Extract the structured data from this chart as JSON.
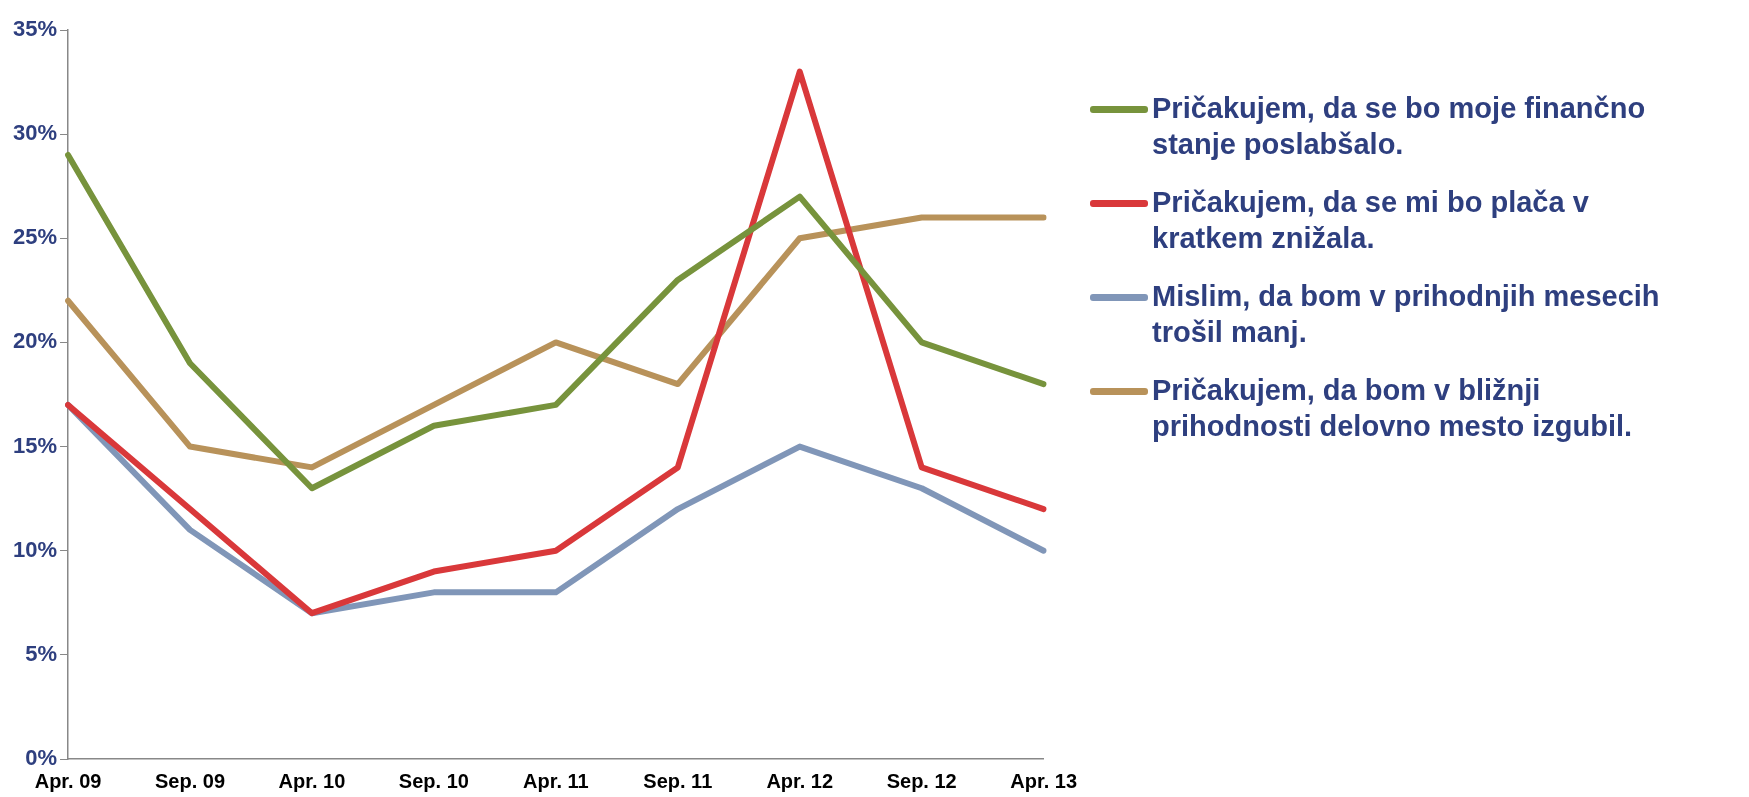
{
  "chart_data": {
    "type": "line",
    "categories": [
      "Apr. 09",
      "Sep. 09",
      "Apr. 10",
      "Sep. 10",
      "Apr. 11",
      "Sep. 11",
      "Apr. 12",
      "Sep. 12",
      "Apr. 13"
    ],
    "series": [
      {
        "name": "Pričakujem, da se bo moje finančno stanje poslabšalo.",
        "color": "#77933c",
        "values": [
          29,
          19,
          13,
          16,
          17,
          23,
          27,
          20,
          18
        ]
      },
      {
        "name": "Pričakujem, da se mi bo plača v kratkem znižala.",
        "color": "#d9383a",
        "values": [
          17,
          12,
          7,
          9,
          10,
          14,
          33,
          14,
          12
        ]
      },
      {
        "name": "Mislim, da bom v prihodnjih mesecih trošil manj.",
        "color": "#8096b8",
        "values": [
          17,
          11,
          7,
          8,
          8,
          12,
          15,
          13,
          10
        ]
      },
      {
        "name": "Pričakujem, da bom v bližnji prihodnosti delovno mesto izgubil.",
        "color": "#b8925a",
        "values": [
          22,
          15,
          14,
          17,
          20,
          18,
          25,
          26,
          26
        ]
      }
    ],
    "ylim": [
      0,
      35
    ],
    "yticks": [
      {
        "value": 0,
        "label": "0%"
      },
      {
        "value": 5,
        "label": "5%"
      },
      {
        "value": 10,
        "label": "10%"
      },
      {
        "value": 15,
        "label": "15%"
      },
      {
        "value": 20,
        "label": "20%"
      },
      {
        "value": 25,
        "label": "25%"
      },
      {
        "value": 30,
        "label": "30%"
      },
      {
        "value": 35,
        "label": "35%"
      }
    ],
    "grid": false,
    "legend": "right",
    "marker": "none",
    "line_style": "solid"
  }
}
